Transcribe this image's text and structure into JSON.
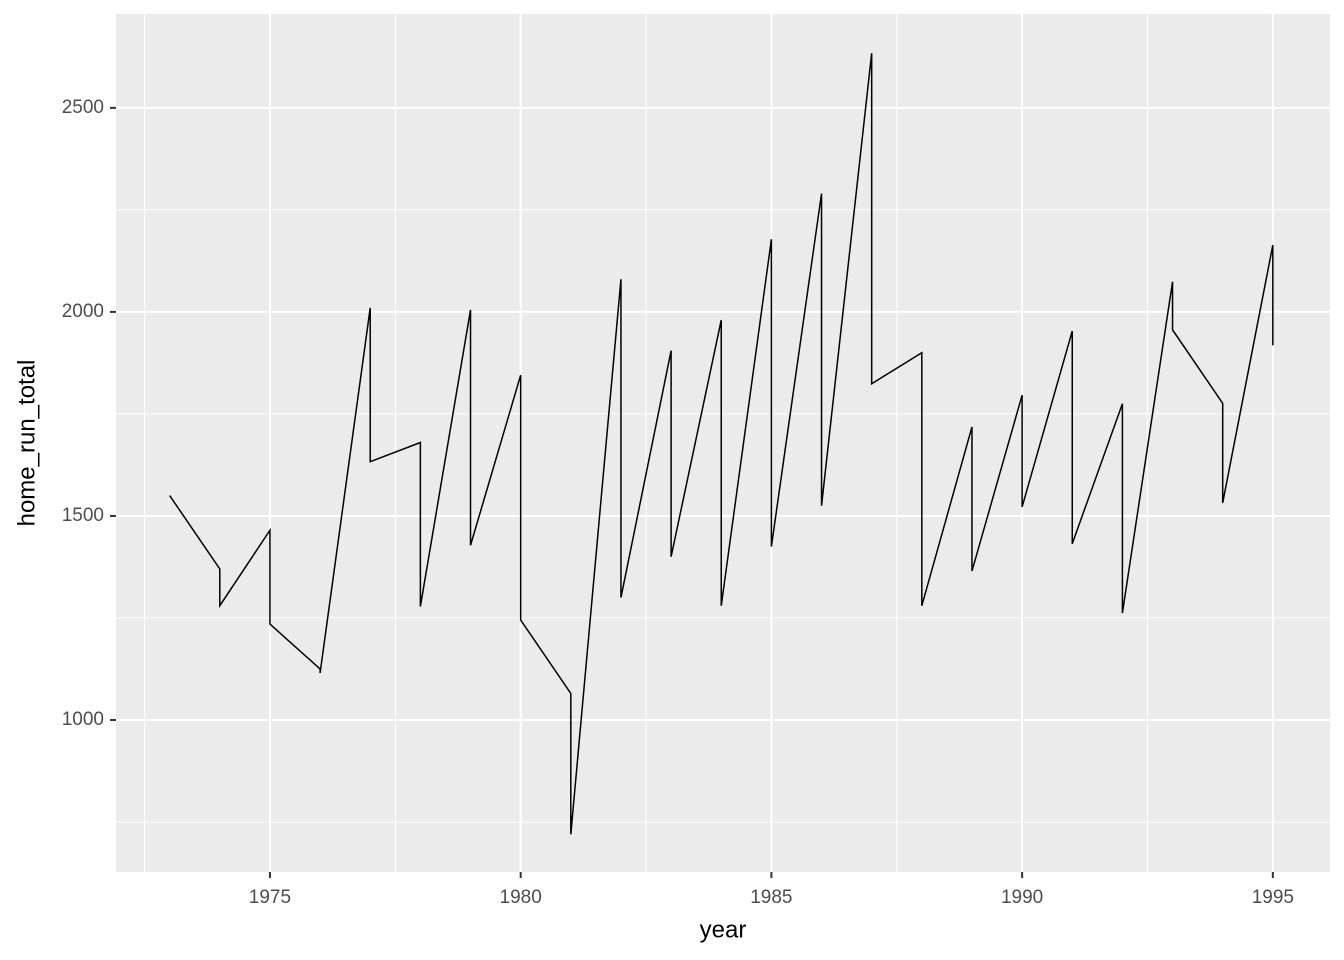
{
  "chart_data": {
    "type": "line",
    "x_label": "year",
    "y_label": "home_run_total",
    "x": [
      1973,
      1974,
      1974,
      1975,
      1975,
      1976,
      1976,
      1977,
      1977,
      1978,
      1978,
      1979,
      1979,
      1980,
      1980,
      1981,
      1981,
      1982,
      1982,
      1983,
      1983,
      1984,
      1984,
      1985,
      1985,
      1986,
      1986,
      1987,
      1987,
      1988,
      1988,
      1989,
      1989,
      1990,
      1990,
      1991,
      1991,
      1992,
      1992,
      1993,
      1993,
      1994,
      1994,
      1995,
      1995
    ],
    "values": [
      1550,
      1370,
      1280,
      1465,
      1235,
      1125,
      1115,
      2010,
      1633,
      1680,
      1278,
      2005,
      1428,
      1845,
      1245,
      1065,
      720,
      2080,
      1300,
      1905,
      1400,
      1980,
      1280,
      2178,
      1425,
      2290,
      1525,
      2634,
      1824,
      1900,
      1280,
      1718,
      1365,
      1796,
      1522,
      1953,
      1432,
      1775,
      1262,
      2074,
      1956,
      1776,
      1532,
      2164,
      1918
    ],
    "color": "#000000",
    "xlim": [
      1971.93,
      1996.14
    ],
    "xticks": [
      1975,
      1980,
      1985,
      1990,
      1995
    ],
    "ylim": [
      627.5,
      2730
    ],
    "yticks": [
      1000,
      1500,
      2000,
      2500
    ],
    "grid": true
  }
}
